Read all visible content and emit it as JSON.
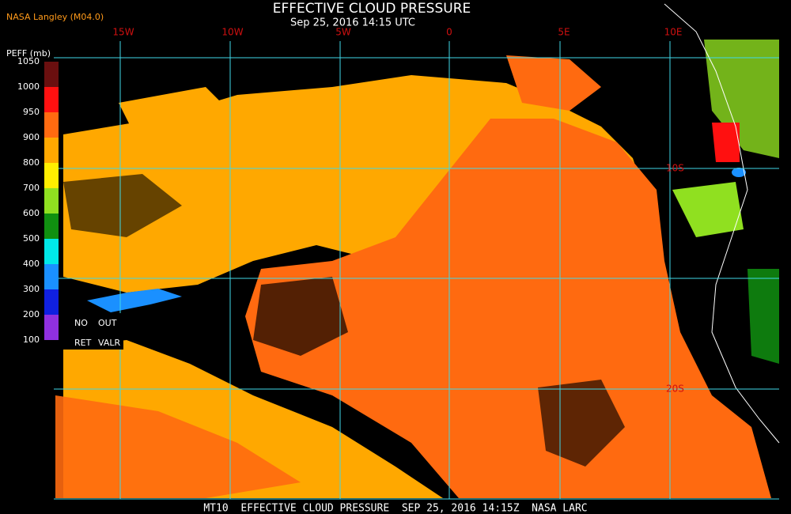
{
  "header": {
    "source": "NASA Langley (M04.0)",
    "title": "EFFECTIVE CLOUD PRESSURE",
    "subtitle": "Sep 25, 2016 14:15 UTC"
  },
  "legend": {
    "title": "PEFF (mb)",
    "ticks": [
      1050,
      1000,
      950,
      900,
      800,
      700,
      600,
      500,
      400,
      300,
      200,
      100
    ],
    "colors": [
      "#6a0f0f",
      "#ff1010",
      "#ff6a10",
      "#ffa800",
      "#ffee00",
      "#90e020",
      "#109010",
      "#00e8e8",
      "#1a90ff",
      "#1020e0",
      "#9030e0"
    ],
    "no_retrieval": [
      "NO",
      "RET"
    ],
    "out_of_range": [
      "OUT",
      "VALR"
    ]
  },
  "map": {
    "lon_labels": [
      "15W",
      "10W",
      "5W",
      "0",
      "5E",
      "10E"
    ],
    "lat_labels": [
      "10S",
      "20S"
    ]
  },
  "footer": "MT10  EFFECTIVE CLOUD PRESSURE  SEP 25, 2016 14:15Z  NASA LARC"
}
